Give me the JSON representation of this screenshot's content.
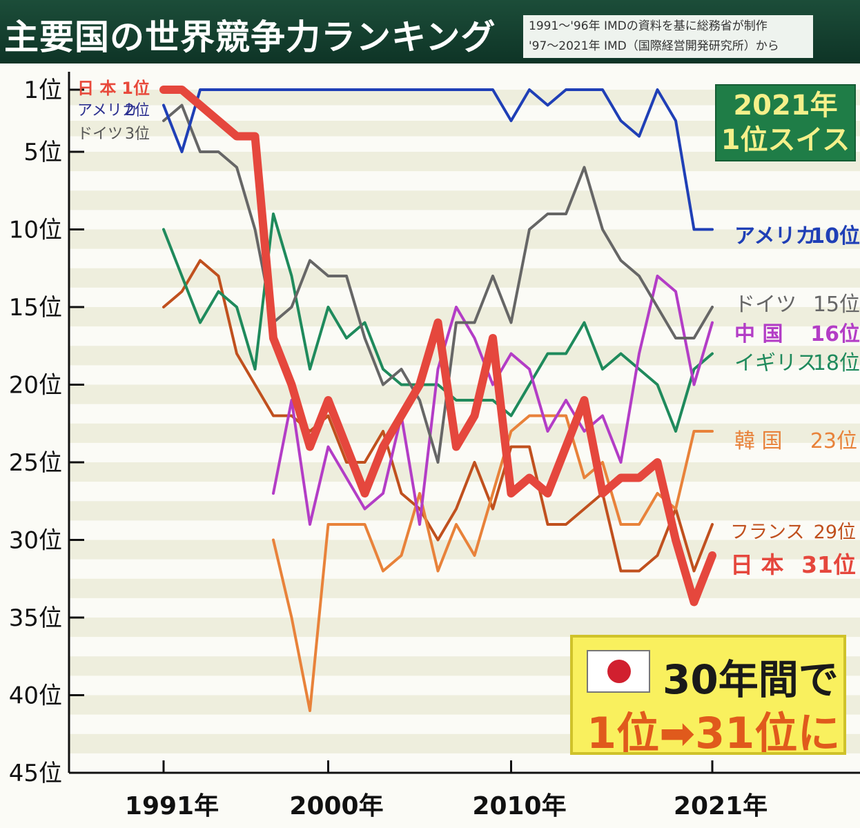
{
  "header": {
    "title": "主要国の世界競争力ランキング",
    "source_line1": "1991～'96年 IMDの資料を基に総務省が制作",
    "source_line2": "'97～2021年 IMD（国際経営開発研究所）から"
  },
  "badge": {
    "line1": "2021年",
    "line2": "1位スイス"
  },
  "callout": {
    "line1": "30年間で",
    "line2": "1位➡31位に"
  },
  "start_legend": [
    {
      "name": "日 本",
      "rank": "1位",
      "color": "#e8493b"
    },
    {
      "name": "アメリカ",
      "rank": "2位",
      "color": "#2b2f8f"
    },
    {
      "name": "ドイツ",
      "rank": "3位",
      "color": "#555555"
    }
  ],
  "chart_data": {
    "type": "line",
    "y_tick_labels": [
      "1位",
      "5位",
      "10位",
      "15位",
      "20位",
      "25位",
      "30位",
      "35位",
      "40位",
      "45位"
    ],
    "y_ticks": [
      1,
      5,
      10,
      15,
      20,
      25,
      30,
      35,
      40,
      45
    ],
    "ylim": [
      1,
      45
    ],
    "y_inverted": true,
    "x_tick_labels": [
      "1991年",
      "2000年",
      "2010年",
      "2021年"
    ],
    "x_ticks": [
      1991,
      2000,
      2010,
      2021
    ],
    "xlim": [
      1991,
      2021
    ],
    "grid": "horizontal bands",
    "series": [
      {
        "name": "アメリカ",
        "end_label": "アメリカ",
        "end_rank": "10位",
        "color": "#1f3fb6",
        "width": 4,
        "x": [
          1991,
          1992,
          1993,
          1994,
          1995,
          1996,
          1997,
          1998,
          1999,
          2000,
          2001,
          2002,
          2003,
          2004,
          2005,
          2006,
          2007,
          2008,
          2009,
          2010,
          2011,
          2012,
          2013,
          2014,
          2015,
          2016,
          2017,
          2018,
          2019,
          2020,
          2021
        ],
        "values": [
          2,
          5,
          1,
          1,
          1,
          1,
          1,
          1,
          1,
          1,
          1,
          1,
          1,
          1,
          1,
          1,
          1,
          1,
          1,
          3,
          1,
          2,
          1,
          1,
          1,
          3,
          4,
          1,
          3,
          10,
          10
        ]
      },
      {
        "name": "ドイツ",
        "end_label": "ドイツ",
        "end_rank": "15位",
        "color": "#666666",
        "width": 4,
        "x": [
          1991,
          1992,
          1993,
          1994,
          1995,
          1996,
          1997,
          1998,
          1999,
          2000,
          2001,
          2002,
          2003,
          2004,
          2005,
          2006,
          2007,
          2008,
          2009,
          2010,
          2011,
          2012,
          2013,
          2014,
          2015,
          2016,
          2017,
          2018,
          2019,
          2020,
          2021
        ],
        "values": [
          3,
          2,
          5,
          5,
          6,
          10,
          16,
          15,
          12,
          13,
          13,
          17,
          20,
          19,
          21,
          25,
          16,
          16,
          13,
          16,
          10,
          9,
          9,
          6,
          10,
          12,
          13,
          15,
          17,
          17,
          15
        ]
      },
      {
        "name": "中国",
        "end_label": "中 国",
        "end_rank": "16位",
        "color": "#b33dc6",
        "width": 4,
        "x": [
          1997,
          1998,
          1999,
          2000,
          2001,
          2002,
          2003,
          2004,
          2005,
          2006,
          2007,
          2008,
          2009,
          2010,
          2011,
          2012,
          2013,
          2014,
          2015,
          2016,
          2017,
          2018,
          2019,
          2020,
          2021
        ],
        "values": [
          27,
          21,
          29,
          24,
          26,
          28,
          27,
          22,
          29,
          19,
          15,
          17,
          20,
          18,
          19,
          23,
          21,
          23,
          22,
          25,
          18,
          13,
          14,
          20,
          16
        ]
      },
      {
        "name": "イギリス",
        "end_label": "イギリス",
        "end_rank": "18位",
        "color": "#1f8a5c",
        "width": 4,
        "x": [
          1991,
          1992,
          1993,
          1994,
          1995,
          1996,
          1997,
          1998,
          1999,
          2000,
          2001,
          2002,
          2003,
          2004,
          2005,
          2006,
          2007,
          2008,
          2009,
          2010,
          2011,
          2012,
          2013,
          2014,
          2015,
          2016,
          2017,
          2018,
          2019,
          2020,
          2021
        ],
        "values": [
          10,
          13,
          16,
          14,
          15,
          19,
          9,
          13,
          19,
          15,
          17,
          16,
          19,
          20,
          20,
          20,
          21,
          21,
          21,
          22,
          20,
          18,
          18,
          16,
          19,
          18,
          19,
          20,
          23,
          19,
          18
        ]
      },
      {
        "name": "韓国",
        "end_label": "韓 国",
        "end_rank": "23位",
        "color": "#e8823a",
        "width": 4,
        "x": [
          1997,
          1998,
          1999,
          2000,
          2001,
          2002,
          2003,
          2004,
          2005,
          2006,
          2007,
          2008,
          2009,
          2010,
          2011,
          2012,
          2013,
          2014,
          2015,
          2016,
          2017,
          2018,
          2019,
          2020,
          2021
        ],
        "values": [
          30,
          35,
          41,
          29,
          29,
          29,
          32,
          31,
          27,
          32,
          29,
          31,
          27,
          23,
          22,
          22,
          22,
          26,
          25,
          29,
          29,
          27,
          28,
          23,
          23
        ]
      },
      {
        "name": "フランス",
        "end_label": "フランス",
        "end_rank": "29位",
        "color": "#c0501e",
        "width": 4,
        "x": [
          1991,
          1992,
          1993,
          1994,
          1995,
          1996,
          1997,
          1998,
          1999,
          2000,
          2001,
          2002,
          2003,
          2004,
          2005,
          2006,
          2007,
          2008,
          2009,
          2010,
          2011,
          2012,
          2013,
          2014,
          2015,
          2016,
          2017,
          2018,
          2019,
          2020,
          2021
        ],
        "values": [
          15,
          14,
          12,
          13,
          18,
          20,
          22,
          22,
          23,
          22,
          25,
          25,
          23,
          27,
          28,
          30,
          28,
          25,
          28,
          24,
          24,
          29,
          29,
          28,
          27,
          32,
          32,
          31,
          28,
          32,
          29
        ]
      },
      {
        "name": "日本",
        "end_label": "日 本",
        "end_rank": "31位",
        "color": "#e5473d",
        "width": 12,
        "x": [
          1991,
          1992,
          1993,
          1994,
          1995,
          1996,
          1997,
          1998,
          1999,
          2000,
          2001,
          2002,
          2003,
          2004,
          2005,
          2006,
          2007,
          2008,
          2009,
          2010,
          2011,
          2012,
          2013,
          2014,
          2015,
          2016,
          2017,
          2018,
          2019,
          2020,
          2021
        ],
        "values": [
          1,
          1,
          2,
          3,
          4,
          4,
          17,
          20,
          24,
          21,
          24,
          27,
          24,
          22,
          20,
          16,
          24,
          22,
          17,
          27,
          26,
          27,
          24,
          21,
          27,
          26,
          26,
          25,
          30,
          34,
          31
        ]
      }
    ]
  }
}
